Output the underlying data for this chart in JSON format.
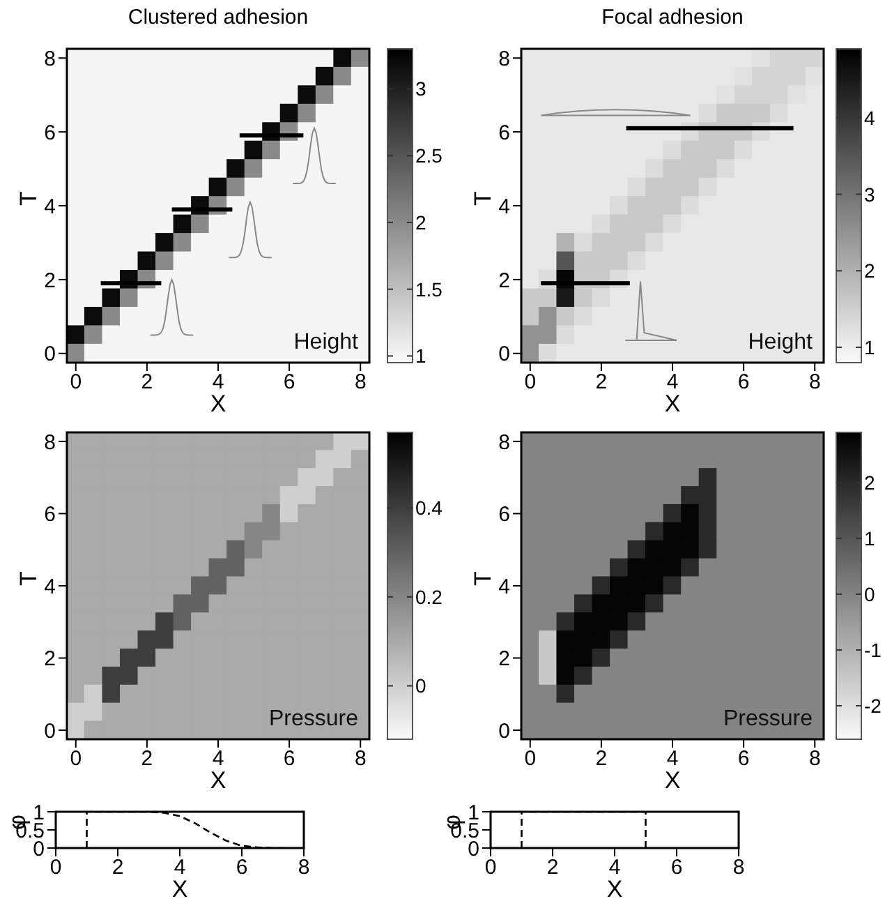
{
  "chart_data": [
    {
      "type": "heatmap",
      "title": "Clustered adhesion",
      "xlabel": "X",
      "ylabel": "T",
      "annotations": [
        "Height"
      ],
      "categories": [
        "0",
        null,
        null,
        null,
        "2",
        null,
        null,
        null,
        "4",
        null,
        null,
        null,
        "6",
        null,
        null,
        null,
        "8"
      ],
      "y_categories": [
        "8",
        null,
        null,
        null,
        "6",
        null,
        null,
        null,
        "4",
        null,
        null,
        null,
        "2",
        null,
        null,
        null,
        "0"
      ],
      "clim": [
        0.95,
        3.3
      ],
      "cticks": [
        1,
        1.5,
        2,
        2.5,
        3
      ],
      "cells": [
        [
          1,
          1,
          1,
          1,
          1,
          1,
          1,
          1,
          1,
          1,
          1,
          1,
          1,
          1,
          1,
          3.2,
          2
        ],
        [
          1,
          1,
          1,
          1,
          1,
          1,
          1,
          1,
          1,
          1,
          1,
          1,
          1,
          1,
          3.2,
          2,
          1
        ],
        [
          1,
          1,
          1,
          1,
          1,
          1,
          1,
          1,
          1,
          1,
          1,
          1,
          1,
          3.2,
          2,
          1,
          1
        ],
        [
          1,
          1,
          1,
          1,
          1,
          1,
          1,
          1,
          1,
          1,
          1,
          1,
          3.2,
          2,
          1,
          1,
          1
        ],
        [
          1,
          1,
          1,
          1,
          1,
          1,
          1,
          1,
          1,
          1,
          1,
          3.2,
          2,
          1,
          1,
          1,
          1
        ],
        [
          1,
          1,
          1,
          1,
          1,
          1,
          1,
          1,
          1,
          1,
          3.2,
          2,
          1,
          1,
          1,
          1,
          1
        ],
        [
          1,
          1,
          1,
          1,
          1,
          1,
          1,
          1,
          1,
          3.2,
          2,
          1,
          1,
          1,
          1,
          1,
          1
        ],
        [
          1,
          1,
          1,
          1,
          1,
          1,
          1,
          1,
          3.2,
          2,
          1,
          1,
          1,
          1,
          1,
          1,
          1
        ],
        [
          1,
          1,
          1,
          1,
          1,
          1,
          1,
          3.2,
          2,
          1,
          1,
          1,
          1,
          1,
          1,
          1,
          1
        ],
        [
          1,
          1,
          1,
          1,
          1,
          1,
          3.2,
          2,
          1,
          1,
          1,
          1,
          1,
          1,
          1,
          1,
          1
        ],
        [
          1,
          1,
          1,
          1,
          1,
          3.2,
          2,
          1,
          1,
          1,
          1,
          1,
          1,
          1,
          1,
          1,
          1
        ],
        [
          1,
          1,
          1,
          1,
          3.2,
          2,
          1,
          1,
          1,
          1,
          1,
          1,
          1,
          1,
          1,
          1,
          1
        ],
        [
          1,
          1,
          1,
          3.2,
          2,
          1,
          1,
          1,
          1,
          1,
          1,
          1,
          1,
          1,
          1,
          1,
          1
        ],
        [
          1,
          1,
          3.2,
          2,
          1,
          1,
          1,
          1,
          1,
          1,
          1,
          1,
          1,
          1,
          1,
          1,
          1
        ],
        [
          1,
          3.2,
          2,
          1,
          1,
          1,
          1,
          1,
          1,
          1,
          1,
          1,
          1,
          1,
          1,
          1,
          1
        ],
        [
          3.2,
          2,
          1,
          1,
          1,
          1,
          1,
          1,
          1,
          1,
          1,
          1,
          1,
          1,
          1,
          1,
          1
        ],
        [
          2,
          1,
          1,
          1,
          1,
          1,
          1,
          1,
          1,
          1,
          1,
          1,
          1,
          1,
          1,
          1,
          1
        ]
      ]
    },
    {
      "type": "heatmap",
      "title": "Focal adhesion",
      "xlabel": "X",
      "ylabel": "T",
      "annotations": [
        "Height"
      ],
      "categories": [
        "0",
        null,
        null,
        null,
        "2",
        null,
        null,
        null,
        "4",
        null,
        null,
        null,
        "6",
        null,
        null,
        null,
        "8"
      ],
      "y_categories": [
        "8",
        null,
        null,
        null,
        "6",
        null,
        null,
        null,
        "4",
        null,
        null,
        null,
        "2",
        null,
        null,
        null,
        "0"
      ],
      "clim": [
        0.8,
        4.9
      ],
      "cticks": [
        1,
        2,
        3,
        4
      ],
      "cells": [
        [
          1.1,
          1.1,
          1.1,
          1.1,
          1.1,
          1.1,
          1.1,
          1.1,
          1.1,
          1.1,
          1.1,
          1.1,
          1.1,
          1.2,
          1.4,
          1.4,
          1.4
        ],
        [
          1.1,
          1.1,
          1.1,
          1.1,
          1.1,
          1.1,
          1.1,
          1.1,
          1.1,
          1.1,
          1.1,
          1.1,
          1.2,
          1.4,
          1.4,
          1.4,
          1.2
        ],
        [
          1.1,
          1.1,
          1.1,
          1.1,
          1.1,
          1.1,
          1.1,
          1.1,
          1.1,
          1.1,
          1.1,
          1.2,
          1.4,
          1.4,
          1.4,
          1.2,
          1.1
        ],
        [
          1.1,
          1.1,
          1.1,
          1.1,
          1.1,
          1.1,
          1.1,
          1.1,
          1.1,
          1.1,
          1.3,
          1.6,
          1.6,
          1.6,
          1.3,
          1.1,
          1.1
        ],
        [
          1.1,
          1.1,
          1.1,
          1.1,
          1.1,
          1.1,
          1.1,
          1.1,
          1.1,
          1.3,
          1.6,
          1.6,
          1.6,
          1.3,
          1.1,
          1.1,
          1.1
        ],
        [
          1.1,
          1.1,
          1.1,
          1.1,
          1.1,
          1.1,
          1.1,
          1.1,
          1.3,
          1.6,
          1.6,
          1.6,
          1.3,
          1.1,
          1.1,
          1.1,
          1.1
        ],
        [
          1.1,
          1.1,
          1.1,
          1.1,
          1.1,
          1.1,
          1.1,
          1.3,
          1.6,
          1.6,
          1.6,
          1.3,
          1.1,
          1.1,
          1.1,
          1.1,
          1.1
        ],
        [
          1.1,
          1.1,
          1.1,
          1.1,
          1.1,
          1.1,
          1.3,
          1.6,
          1.6,
          1.6,
          1.3,
          1.1,
          1.1,
          1.1,
          1.1,
          1.1,
          1.1
        ],
        [
          1.1,
          1.1,
          1.1,
          1.1,
          1.1,
          1.3,
          1.6,
          1.6,
          1.6,
          1.3,
          1.1,
          1.1,
          1.1,
          1.1,
          1.1,
          1.1,
          1.1
        ],
        [
          1.1,
          1.1,
          1.1,
          1.1,
          1.3,
          1.6,
          1.6,
          1.6,
          1.3,
          1.1,
          1.1,
          1.1,
          1.1,
          1.1,
          1.1,
          1.1,
          1.1
        ],
        [
          1.1,
          1.1,
          2,
          1.3,
          1.6,
          1.6,
          1.6,
          1.3,
          1.1,
          1.1,
          1.1,
          1.1,
          1.1,
          1.1,
          1.1,
          1.1,
          1.1
        ],
        [
          1.1,
          1.1,
          3.5,
          1.6,
          1.6,
          1.6,
          1.3,
          1.1,
          1.1,
          1.1,
          1.1,
          1.1,
          1.1,
          1.1,
          1.1,
          1.1,
          1.1
        ],
        [
          1.1,
          1.3,
          4.8,
          1.6,
          1.6,
          1.3,
          1.1,
          1.1,
          1.1,
          1.1,
          1.1,
          1.1,
          1.1,
          1.1,
          1.1,
          1.1,
          1.1
        ],
        [
          1.6,
          1.6,
          4.5,
          1.6,
          1.3,
          1.1,
          1.1,
          1.1,
          1.1,
          1.1,
          1.1,
          1.1,
          1.1,
          1.1,
          1.1,
          1.1,
          1.1
        ],
        [
          1.6,
          2.5,
          1.6,
          1.3,
          1.1,
          1.1,
          1.1,
          1.1,
          1.1,
          1.1,
          1.1,
          1.1,
          1.1,
          1.1,
          1.1,
          1.1,
          1.1
        ],
        [
          2.5,
          2.5,
          1.3,
          1.1,
          1.1,
          1.1,
          1.1,
          1.1,
          1.1,
          1.1,
          1.1,
          1.1,
          1.1,
          1.1,
          1.1,
          1.1,
          1.1
        ],
        [
          2.5,
          1.3,
          1.1,
          1.1,
          1.1,
          1.1,
          1.1,
          1.1,
          1.1,
          1.1,
          1.1,
          1.1,
          1.1,
          1.1,
          1.1,
          1.1,
          1.1
        ]
      ]
    },
    {
      "type": "heatmap",
      "xlabel": "X",
      "ylabel": "T",
      "annotations": [
        "Pressure"
      ],
      "categories": [
        "0",
        null,
        null,
        null,
        "2",
        null,
        null,
        null,
        "4",
        null,
        null,
        null,
        "6",
        null,
        null,
        null,
        "8"
      ],
      "y_categories": [
        "8",
        null,
        null,
        null,
        "6",
        null,
        null,
        null,
        "4",
        null,
        null,
        null,
        "2",
        null,
        null,
        null,
        "0"
      ],
      "clim": [
        -0.12,
        0.57
      ],
      "cticks": [
        0,
        0.2,
        0.4
      ],
      "cells": [
        [
          0.1,
          0.1,
          0.1,
          0.1,
          0.1,
          0.1,
          0.1,
          0.1,
          0.1,
          0.1,
          0.1,
          0.1,
          0.1,
          0.1,
          0.1,
          0,
          0
        ],
        [
          0.1,
          0.1,
          0.1,
          0.1,
          0.1,
          0.1,
          0.1,
          0.1,
          0.1,
          0.1,
          0.1,
          0.1,
          0.1,
          0.1,
          0,
          0,
          0.1
        ],
        [
          0.1,
          0.1,
          0.1,
          0.1,
          0.1,
          0.1,
          0.1,
          0.1,
          0.1,
          0.1,
          0.1,
          0.1,
          0.1,
          0,
          0,
          0.1,
          0.1
        ],
        [
          0.1,
          0.1,
          0.1,
          0.1,
          0.1,
          0.1,
          0.1,
          0.1,
          0.1,
          0.1,
          0.1,
          0.1,
          0,
          0,
          0.1,
          0.1,
          0.1
        ],
        [
          0.1,
          0.1,
          0.1,
          0.1,
          0.1,
          0.1,
          0.1,
          0.1,
          0.1,
          0.1,
          0.1,
          0.2,
          0,
          0.1,
          0.1,
          0.1,
          0.1
        ],
        [
          0.1,
          0.1,
          0.1,
          0.1,
          0.1,
          0.1,
          0.1,
          0.1,
          0.1,
          0.1,
          0.2,
          0.2,
          0.1,
          0.1,
          0.1,
          0.1,
          0.1
        ],
        [
          0.1,
          0.1,
          0.1,
          0.1,
          0.1,
          0.1,
          0.1,
          0.1,
          0.1,
          0.3,
          0.2,
          0.1,
          0.1,
          0.1,
          0.1,
          0.1,
          0.1
        ],
        [
          0.1,
          0.1,
          0.1,
          0.1,
          0.1,
          0.1,
          0.1,
          0.1,
          0.3,
          0.3,
          0.1,
          0.1,
          0.1,
          0.1,
          0.1,
          0.1,
          0.1
        ],
        [
          0.1,
          0.1,
          0.1,
          0.1,
          0.1,
          0.1,
          0.1,
          0.3,
          0.3,
          0.1,
          0.1,
          0.1,
          0.1,
          0.1,
          0.1,
          0.1,
          0.1
        ],
        [
          0.1,
          0.1,
          0.1,
          0.1,
          0.1,
          0.1,
          0.3,
          0.3,
          0.1,
          0.1,
          0.1,
          0.1,
          0.1,
          0.1,
          0.1,
          0.1,
          0.1
        ],
        [
          0.1,
          0.1,
          0.1,
          0.1,
          0.1,
          0.4,
          0.3,
          0.1,
          0.1,
          0.1,
          0.1,
          0.1,
          0.1,
          0.1,
          0.1,
          0.1,
          0.1
        ],
        [
          0.1,
          0.1,
          0.1,
          0.1,
          0.4,
          0.4,
          0.1,
          0.1,
          0.1,
          0.1,
          0.1,
          0.1,
          0.1,
          0.1,
          0.1,
          0.1,
          0.1
        ],
        [
          0.1,
          0.1,
          0.1,
          0.4,
          0.4,
          0.1,
          0.1,
          0.1,
          0.1,
          0.1,
          0.1,
          0.1,
          0.1,
          0.1,
          0.1,
          0.1,
          0.1
        ],
        [
          0.1,
          0.1,
          0.4,
          0.4,
          0.1,
          0.1,
          0.1,
          0.1,
          0.1,
          0.1,
          0.1,
          0.1,
          0.1,
          0.1,
          0.1,
          0.1,
          0.1
        ],
        [
          0.1,
          0,
          0.4,
          0.1,
          0.1,
          0.1,
          0.1,
          0.1,
          0.1,
          0.1,
          0.1,
          0.1,
          0.1,
          0.1,
          0.1,
          0.1,
          0.1
        ],
        [
          0,
          0,
          0.1,
          0.1,
          0.1,
          0.1,
          0.1,
          0.1,
          0.1,
          0.1,
          0.1,
          0.1,
          0.1,
          0.1,
          0.1,
          0.1,
          0.1
        ],
        [
          0,
          0.1,
          0.1,
          0.1,
          0.1,
          0.1,
          0.1,
          0.1,
          0.1,
          0.1,
          0.1,
          0.1,
          0.1,
          0.1,
          0.1,
          0.1,
          0.1
        ]
      ]
    },
    {
      "type": "heatmap",
      "xlabel": "X",
      "ylabel": "T",
      "annotations": [
        "Pressure"
      ],
      "categories": [
        "0",
        null,
        null,
        null,
        "2",
        null,
        null,
        null,
        "4",
        null,
        null,
        null,
        "6",
        null,
        null,
        null,
        "8"
      ],
      "y_categories": [
        "8",
        null,
        null,
        null,
        "6",
        null,
        null,
        null,
        "4",
        null,
        null,
        null,
        "2",
        null,
        null,
        null,
        "0"
      ],
      "clim": [
        -2.6,
        2.9
      ],
      "cticks": [
        -2,
        -1,
        0,
        1,
        2
      ],
      "cells": [
        [
          0,
          0,
          0,
          0,
          0,
          0,
          0,
          0,
          0,
          0,
          0,
          0,
          0,
          0,
          0,
          0,
          0
        ],
        [
          0,
          0,
          0,
          0,
          0,
          0,
          0,
          0,
          0,
          0,
          0,
          0,
          0,
          0,
          0,
          0,
          0
        ],
        [
          0,
          0,
          0,
          0,
          0,
          0,
          0,
          0,
          0,
          0,
          2,
          0,
          0,
          0,
          0,
          0,
          0
        ],
        [
          0,
          0,
          0,
          0,
          0,
          0,
          0,
          0,
          0,
          2,
          2,
          0,
          0,
          0,
          0,
          0,
          0
        ],
        [
          0,
          0,
          0,
          0,
          0,
          0,
          0,
          0,
          2,
          2.8,
          2,
          0,
          0,
          0,
          0,
          0,
          0
        ],
        [
          0,
          0,
          0,
          0,
          0,
          0,
          0,
          2,
          2.8,
          2.8,
          2,
          0,
          0,
          0,
          0,
          0,
          0
        ],
        [
          0,
          0,
          0,
          0,
          0,
          0,
          2,
          2.8,
          2.8,
          2.8,
          2,
          0,
          0,
          0,
          0,
          0,
          0
        ],
        [
          0,
          0,
          0,
          0,
          0,
          2,
          2.8,
          2.8,
          2.8,
          2,
          0,
          0,
          0,
          0,
          0,
          0,
          0
        ],
        [
          0,
          0,
          0,
          0,
          2,
          2.8,
          2.8,
          2.8,
          2,
          0,
          0,
          0,
          0,
          0,
          0,
          0,
          0
        ],
        [
          0,
          0,
          0,
          2,
          2.8,
          2.8,
          2.8,
          2,
          0,
          0,
          0,
          0,
          0,
          0,
          0,
          0,
          0
        ],
        [
          0,
          0,
          2,
          2.8,
          2.8,
          2.8,
          2,
          0,
          0,
          0,
          0,
          0,
          0,
          0,
          0,
          0,
          0
        ],
        [
          0,
          -1.5,
          2.8,
          2.8,
          2.8,
          2,
          0,
          0,
          0,
          0,
          0,
          0,
          0,
          0,
          0,
          0,
          0
        ],
        [
          0,
          -1.5,
          2.8,
          2.8,
          2,
          0,
          0,
          0,
          0,
          0,
          0,
          0,
          0,
          0,
          0,
          0,
          0
        ],
        [
          0,
          -1.5,
          2.8,
          2,
          0,
          0,
          0,
          0,
          0,
          0,
          0,
          0,
          0,
          0,
          0,
          0,
          0
        ],
        [
          0,
          0,
          2,
          0,
          0,
          0,
          0,
          0,
          0,
          0,
          0,
          0,
          0,
          0,
          0,
          0,
          0
        ],
        [
          0,
          0,
          0,
          0,
          0,
          0,
          0,
          0,
          0,
          0,
          0,
          0,
          0,
          0,
          0,
          0,
          0
        ],
        [
          0,
          0,
          0,
          0,
          0,
          0,
          0,
          0,
          0,
          0,
          0,
          0,
          0,
          0,
          0,
          0,
          0
        ]
      ]
    },
    {
      "type": "line",
      "xlabel": "X",
      "ylabel": "φ",
      "xlim": [
        0,
        8
      ],
      "xticks": [
        0,
        2,
        4,
        6,
        8
      ],
      "ylim": [
        0,
        1
      ],
      "yticks": [
        0,
        0.5,
        1
      ],
      "line_style": "dashed",
      "marker": "none",
      "series": [
        {
          "color": "#000000",
          "x": [
            1,
            1,
            2,
            3,
            3.5,
            4,
            4.5,
            5,
            5.5,
            6,
            6.5,
            7,
            7.5
          ],
          "values": [
            0,
            1,
            1,
            1,
            0.97,
            0.88,
            0.68,
            0.42,
            0.2,
            0.06,
            0.02,
            0,
            0
          ]
        }
      ]
    },
    {
      "type": "line",
      "xlabel": "X",
      "ylabel": "φ",
      "xlim": [
        0,
        8
      ],
      "xticks": [
        0,
        2,
        4,
        6,
        8
      ],
      "ylim": [
        0,
        1
      ],
      "yticks": [
        0,
        0.5,
        1
      ],
      "line_style": "dashed",
      "marker": "none",
      "series": [
        {
          "color": "#000000",
          "x": [
            1,
            1,
            5,
            5
          ],
          "values": [
            0,
            1,
            1,
            0
          ]
        }
      ]
    }
  ]
}
